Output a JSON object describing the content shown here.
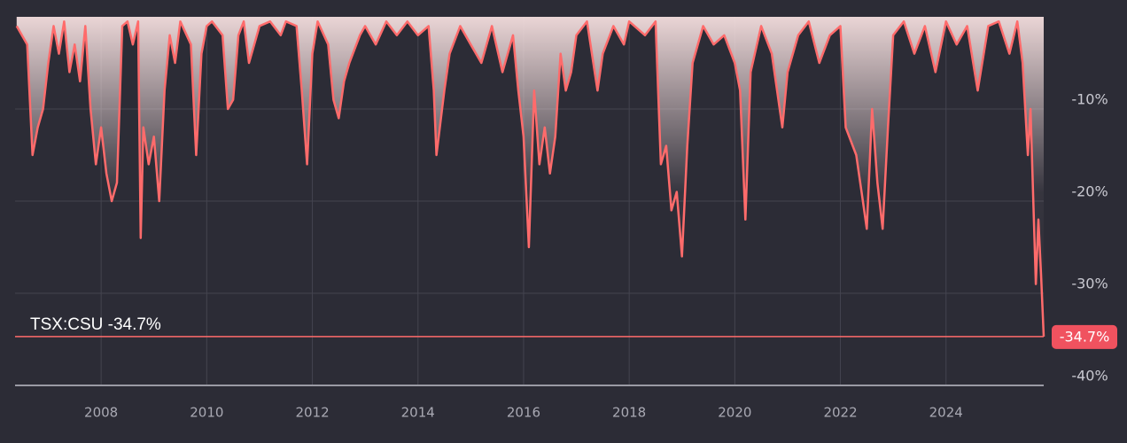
{
  "chart_data": {
    "type": "area-line",
    "annotation": "TSX:CSU -34.7%",
    "last_value": {
      "value": -34.7,
      "label": "-34.7%"
    },
    "color": "#ff6b6b",
    "grid": true,
    "xlim": [
      2006.37,
      2025.85
    ],
    "xticks": [
      2008,
      2010,
      2012,
      2014,
      2016,
      2018,
      2020,
      2022,
      2024
    ],
    "ylim": [
      -40,
      0
    ],
    "yticks": [
      {
        "value": -10,
        "label": "-10%"
      },
      {
        "value": -20,
        "label": "-20%"
      },
      {
        "value": -30,
        "label": "-30%"
      },
      {
        "value": -40,
        "label": "-40%"
      }
    ],
    "x": [
      2006.4,
      2006.6,
      2006.7,
      2006.8,
      2006.9,
      2007.0,
      2007.1,
      2007.2,
      2007.3,
      2007.4,
      2007.5,
      2007.6,
      2007.7,
      2007.8,
      2007.9,
      2008.0,
      2008.1,
      2008.2,
      2008.3,
      2008.4,
      2008.5,
      2008.6,
      2008.7,
      2008.75,
      2008.8,
      2008.9,
      2009.0,
      2009.1,
      2009.2,
      2009.3,
      2009.4,
      2009.5,
      2009.7,
      2009.8,
      2009.9,
      2010.0,
      2010.1,
      2010.3,
      2010.4,
      2010.5,
      2010.6,
      2010.7,
      2010.8,
      2010.9,
      2011.0,
      2011.2,
      2011.4,
      2011.5,
      2011.7,
      2011.8,
      2011.9,
      2012.0,
      2012.1,
      2012.3,
      2012.4,
      2012.5,
      2012.6,
      2012.7,
      2012.9,
      2013.0,
      2013.2,
      2013.4,
      2013.6,
      2013.8,
      2014.0,
      2014.2,
      2014.3,
      2014.35,
      2014.5,
      2014.6,
      2014.8,
      2015.0,
      2015.2,
      2015.4,
      2015.6,
      2015.8,
      2015.9,
      2016.0,
      2016.1,
      2016.2,
      2016.3,
      2016.4,
      2016.5,
      2016.6,
      2016.7,
      2016.8,
      2016.9,
      2017.0,
      2017.2,
      2017.4,
      2017.5,
      2017.7,
      2017.9,
      2018.0,
      2018.3,
      2018.5,
      2018.6,
      2018.7,
      2018.8,
      2018.9,
      2019.0,
      2019.1,
      2019.2,
      2019.4,
      2019.6,
      2019.8,
      2020.0,
      2020.1,
      2020.2,
      2020.3,
      2020.5,
      2020.7,
      2020.9,
      2021.0,
      2021.2,
      2021.4,
      2021.6,
      2021.8,
      2022.0,
      2022.1,
      2022.3,
      2022.4,
      2022.5,
      2022.6,
      2022.7,
      2022.8,
      2022.9,
      2023.0,
      2023.2,
      2023.4,
      2023.6,
      2023.8,
      2024.0,
      2024.2,
      2024.4,
      2024.6,
      2024.8,
      2025.0,
      2025.2,
      2025.35,
      2025.45,
      2025.55,
      2025.6,
      2025.7,
      2025.75,
      2025.8,
      2025.85
    ],
    "values": [
      -1,
      -3,
      -15,
      -12,
      -10,
      -5,
      -1,
      -4,
      -0.5,
      -6,
      -3,
      -7,
      -1,
      -10,
      -16,
      -12,
      -17,
      -20,
      -18,
      -1,
      -0.5,
      -3,
      -0.5,
      -24,
      -12,
      -16,
      -13,
      -20,
      -8,
      -2,
      -5,
      -0.5,
      -3,
      -15,
      -4,
      -1,
      -0.5,
      -2,
      -10,
      -9,
      -2,
      -0.5,
      -5,
      -3,
      -1,
      -0.5,
      -2,
      -0.5,
      -1,
      -8,
      -16,
      -4,
      -0.5,
      -3,
      -9,
      -11,
      -7,
      -5,
      -2,
      -1,
      -3,
      -0.5,
      -2,
      -0.5,
      -2,
      -1,
      -8,
      -15,
      -8,
      -4,
      -1,
      -3,
      -5,
      -1,
      -6,
      -2,
      -8,
      -13,
      -25,
      -8,
      -16,
      -12,
      -17,
      -13,
      -4,
      -8,
      -6,
      -2,
      -0.5,
      -8,
      -4,
      -1,
      -3,
      -0.5,
      -2,
      -0.5,
      -16,
      -14,
      -21,
      -19,
      -26,
      -14,
      -5,
      -1,
      -3,
      -2,
      -5,
      -8,
      -22,
      -6,
      -1,
      -4,
      -12,
      -6,
      -2,
      -0.5,
      -5,
      -2,
      -1,
      -12,
      -15,
      -19,
      -23,
      -10,
      -18,
      -23,
      -12,
      -2,
      -0.5,
      -4,
      -1,
      -6,
      -0.5,
      -3,
      -1,
      -8,
      -1,
      -0.5,
      -4,
      -0.5,
      -5,
      -15,
      -10,
      -29,
      -22,
      -28,
      -34.7
    ]
  }
}
